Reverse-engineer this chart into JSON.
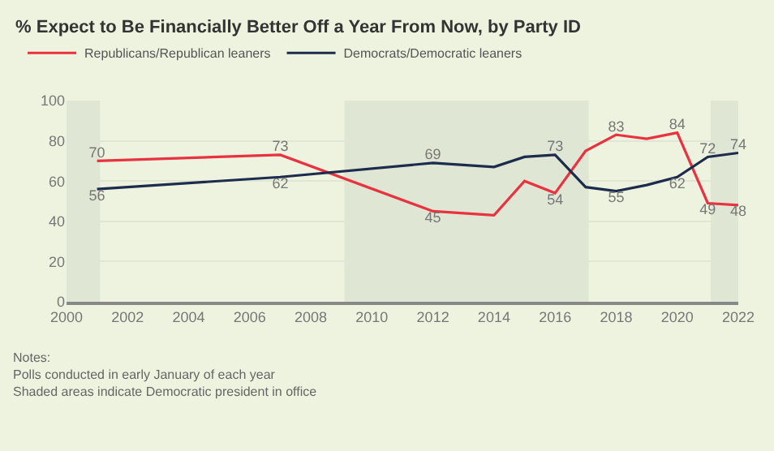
{
  "chart_data": {
    "type": "line",
    "title": "% Expect to Be Financially Better Off a Year From Now, by Party ID",
    "x": [
      2001,
      2007,
      2012,
      2014,
      2015,
      2016,
      2017,
      2018,
      2019,
      2020,
      2021,
      2022
    ],
    "series": [
      {
        "name": "Republicans/Republican leaners",
        "color": "#e8323f",
        "values": [
          70,
          73,
          45,
          43,
          60,
          54,
          75,
          83,
          81,
          84,
          49,
          48
        ],
        "value_labels": [
          "70",
          "73",
          "45",
          null,
          null,
          "54",
          null,
          "83",
          null,
          "84",
          "49",
          "48"
        ]
      },
      {
        "name": "Democrats/Democratic leaners",
        "color": "#1d2c4c",
        "values": [
          56,
          62,
          69,
          67,
          72,
          73,
          57,
          55,
          58,
          62,
          72,
          74
        ],
        "value_labels": [
          "56",
          "62",
          "69",
          null,
          null,
          "73",
          null,
          "55",
          null,
          "62",
          "72",
          "74"
        ]
      }
    ],
    "xlim": [
      2000,
      2022
    ],
    "xticks": [
      2000,
      2002,
      2004,
      2006,
      2008,
      2010,
      2012,
      2014,
      2016,
      2018,
      2020,
      2022
    ],
    "ylim": [
      0,
      100
    ],
    "yticks": [
      0,
      20,
      40,
      60,
      80,
      100
    ],
    "bands": [
      {
        "axis": "x",
        "from": 2000,
        "to": 2001.1,
        "label": null,
        "color": "#dfe6d3"
      },
      {
        "axis": "x",
        "from": 2009.1,
        "to": 2017.1,
        "label": null,
        "color": "#dfe6d3"
      },
      {
        "axis": "x",
        "from": 2021.1,
        "to": 2022,
        "label": null,
        "color": "#dfe6d3"
      }
    ],
    "annotations": [
      "Notes:",
      "Polls conducted in early January of each year",
      "Shaded areas indicate Democratic president in office"
    ],
    "grid": "y",
    "legend": "top left",
    "marker": "none",
    "line_style": "solid"
  }
}
